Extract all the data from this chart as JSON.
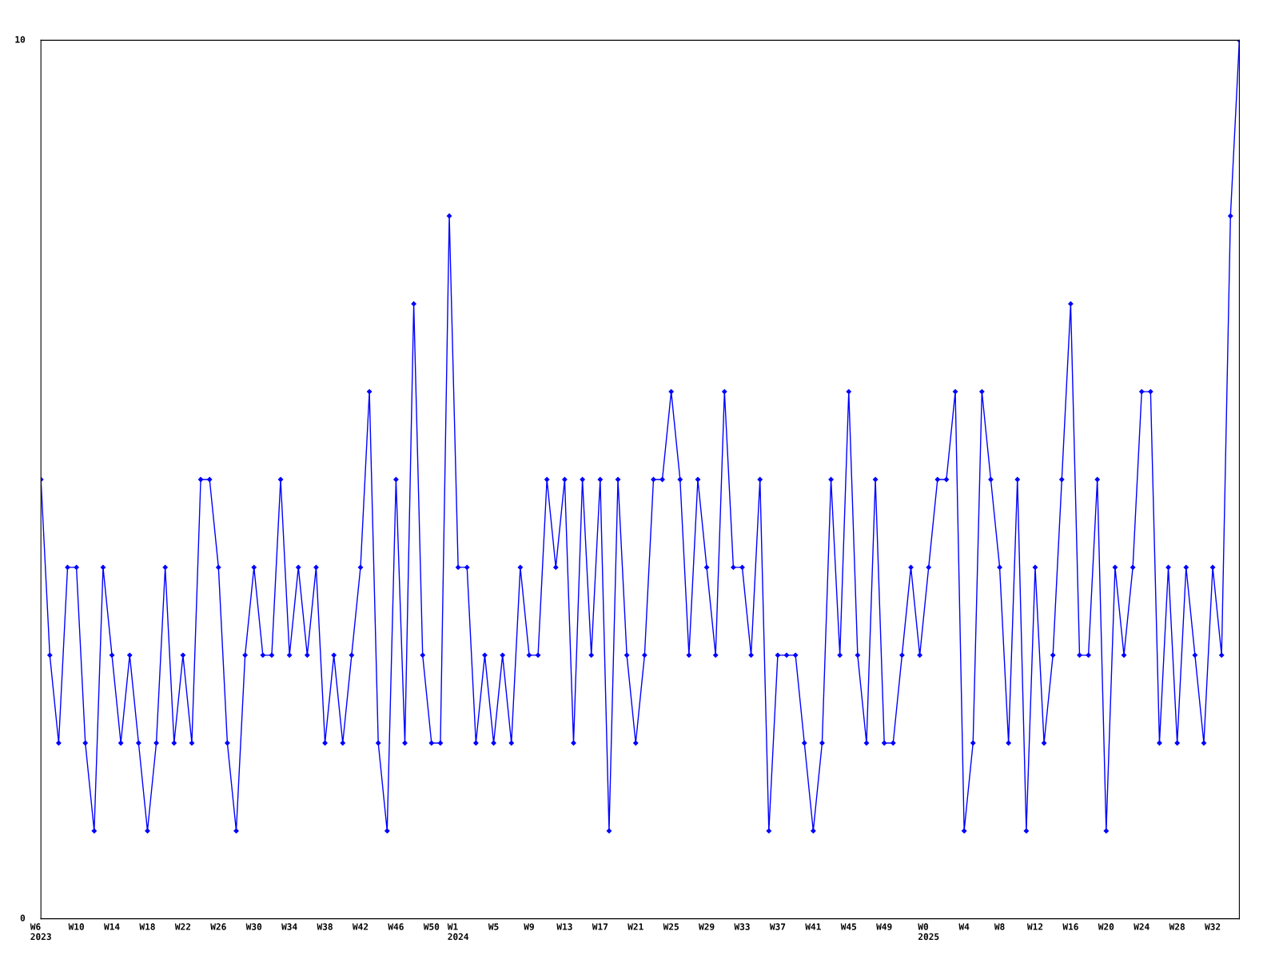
{
  "chart_data": {
    "type": "line",
    "categories": [
      "W6\n2023",
      null,
      null,
      null,
      "W10",
      null,
      null,
      null,
      "W14",
      null,
      null,
      null,
      "W18",
      null,
      null,
      null,
      "W22",
      null,
      null,
      null,
      "W26",
      null,
      null,
      null,
      "W30",
      null,
      null,
      null,
      "W34",
      null,
      null,
      null,
      "W38",
      null,
      null,
      null,
      "W42",
      null,
      null,
      null,
      "W46",
      null,
      null,
      null,
      "W50",
      null,
      null,
      "W1\n2024",
      null,
      null,
      null,
      "W5",
      null,
      null,
      null,
      "W9",
      null,
      null,
      null,
      "W13",
      null,
      null,
      null,
      "W17",
      null,
      null,
      null,
      "W21",
      null,
      null,
      null,
      "W25",
      null,
      null,
      null,
      "W29",
      null,
      null,
      null,
      "W33",
      null,
      null,
      null,
      "W37",
      null,
      null,
      null,
      "W41",
      null,
      null,
      null,
      "W45",
      null,
      null,
      null,
      "W49",
      null,
      null,
      null,
      null,
      "W0\n2025",
      null,
      null,
      null,
      "W4",
      null,
      null,
      null,
      "W8",
      null,
      null,
      null,
      "W12",
      null,
      null,
      null,
      "W16",
      null,
      null,
      null,
      "W20",
      null,
      null,
      null,
      "W24",
      null,
      null,
      null,
      "W28",
      null,
      null,
      null,
      "W32",
      null,
      null,
      null
    ],
    "series": [
      {
        "color": "#0000ff",
        "values": [
          5,
          3,
          2,
          4,
          4,
          2,
          1,
          4,
          3,
          2,
          3,
          2,
          1,
          2,
          4,
          2,
          3,
          2,
          5,
          5,
          4,
          2,
          1,
          3,
          4,
          3,
          3,
          5,
          3,
          4,
          3,
          4,
          2,
          3,
          2,
          3,
          4,
          6,
          2,
          1,
          5,
          2,
          7,
          3,
          2,
          2,
          8,
          4,
          4,
          2,
          3,
          2,
          3,
          2,
          4,
          3,
          3,
          5,
          4,
          5,
          2,
          5,
          3,
          5,
          1,
          5,
          3,
          2,
          3,
          5,
          5,
          6,
          5,
          3,
          5,
          4,
          3,
          6,
          4,
          4,
          3,
          5,
          1,
          3,
          3,
          3,
          2,
          1,
          2,
          5,
          3,
          6,
          3,
          2,
          5,
          2,
          2,
          3,
          4,
          3,
          4,
          5,
          5,
          6,
          1,
          2,
          6,
          5,
          4,
          2,
          5,
          1,
          4,
          2,
          3,
          5,
          7,
          3,
          3,
          5,
          1,
          4,
          3,
          4,
          6,
          6,
          2,
          4,
          2,
          4,
          3,
          2,
          4,
          3,
          8,
          10
        ]
      }
    ],
    "ylim": [
      0,
      10
    ],
    "yticks": [
      0,
      10
    ],
    "grid": false,
    "marker": "diamond",
    "line_style": "solid"
  }
}
